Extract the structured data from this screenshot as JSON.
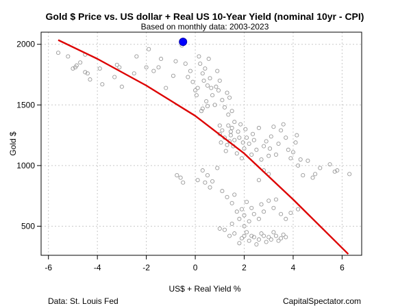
{
  "chart_data": {
    "type": "scatter",
    "title": "Gold $ Price vs. US dollar + Real US 10-Year Yield (nominal 10yr - CPI)",
    "subtitle": "Based on monthly data: 2003-2023",
    "xlabel": "US$ + Real Yield %",
    "ylabel": "Gold $",
    "xlim": [
      -6.3,
      6.8
    ],
    "ylim": [
      260,
      2100
    ],
    "x_ticks": [
      "-6",
      "-4",
      "-2",
      "0",
      "2",
      "4",
      "6"
    ],
    "x_tick_values": [
      -6,
      -4,
      -2,
      0,
      2,
      4,
      6
    ],
    "y_ticks": [
      "500",
      "1000",
      "1500",
      "2000"
    ],
    "y_tick_values": [
      500,
      1000,
      1500,
      2000
    ],
    "grid": true,
    "colors": {
      "points": "#999999",
      "fit_line": "#dd0000",
      "highlight": "#0000ff"
    },
    "points": [
      [
        -5.6,
        1930
      ],
      [
        -5.2,
        1900
      ],
      [
        -5.0,
        1800
      ],
      [
        -4.9,
        1810
      ],
      [
        -4.85,
        1825
      ],
      [
        -4.7,
        1850
      ],
      [
        -4.5,
        1770
      ],
      [
        -4.4,
        1760
      ],
      [
        -4.3,
        1710
      ],
      [
        -4.5,
        1915
      ],
      [
        -3.9,
        1800
      ],
      [
        -3.8,
        1670
      ],
      [
        -3.3,
        1730
      ],
      [
        -3.2,
        1830
      ],
      [
        -3.1,
        1810
      ],
      [
        -3.0,
        1650
      ],
      [
        -2.5,
        1760
      ],
      [
        -2.4,
        1900
      ],
      [
        -2.0,
        1810
      ],
      [
        -1.9,
        1960
      ],
      [
        -1.7,
        1780
      ],
      [
        -1.5,
        1810
      ],
      [
        -1.4,
        1880
      ],
      [
        -1.2,
        1640
      ],
      [
        -0.9,
        1740
      ],
      [
        -0.8,
        1860
      ],
      [
        -0.55,
        1990
      ],
      [
        -0.4,
        1840
      ],
      [
        -0.3,
        1730
      ],
      [
        -0.2,
        1780
      ],
      [
        -0.1,
        1690
      ],
      [
        0.0,
        1620
      ],
      [
        0.05,
        1580
      ],
      [
        0.1,
        1640
      ],
      [
        0.15,
        1900
      ],
      [
        0.2,
        1840
      ],
      [
        0.3,
        1760
      ],
      [
        0.35,
        1700
      ],
      [
        0.4,
        1800
      ],
      [
        0.45,
        1530
      ],
      [
        0.5,
        1660
      ],
      [
        0.55,
        1880
      ],
      [
        0.6,
        1720
      ],
      [
        0.65,
        1640
      ],
      [
        0.7,
        1580
      ],
      [
        0.8,
        1500
      ],
      [
        0.85,
        1650
      ],
      [
        0.9,
        1780
      ],
      [
        0.95,
        1620
      ],
      [
        1.0,
        1700
      ],
      [
        1.1,
        1540
      ],
      [
        1.2,
        1480
      ],
      [
        1.3,
        1600
      ],
      [
        1.35,
        1420
      ],
      [
        1.4,
        1560
      ],
      [
        1.5,
        1450
      ],
      [
        0.25,
        1450
      ],
      [
        0.3,
        1470
      ],
      [
        0.5,
        1490
      ],
      [
        1.0,
        1330
      ],
      [
        1.0,
        1260
      ],
      [
        1.05,
        1190
      ],
      [
        1.1,
        1290
      ],
      [
        1.2,
        1230
      ],
      [
        1.25,
        1120
      ],
      [
        1.3,
        1170
      ],
      [
        1.4,
        1200
      ],
      [
        1.45,
        1250
      ],
      [
        1.5,
        1310
      ],
      [
        1.55,
        1160
      ],
      [
        1.6,
        1210
      ],
      [
        1.7,
        1100
      ],
      [
        1.75,
        1280
      ],
      [
        1.8,
        1230
      ],
      [
        1.85,
        1340
      ],
      [
        1.9,
        1060
      ],
      [
        1.95,
        1190
      ],
      [
        2.0,
        1140
      ],
      [
        2.05,
        1300
      ],
      [
        2.1,
        1230
      ],
      [
        2.2,
        1180
      ],
      [
        2.3,
        1090
      ],
      [
        2.35,
        1260
      ],
      [
        2.4,
        1210
      ],
      [
        2.5,
        1130
      ],
      [
        2.6,
        1310
      ],
      [
        2.7,
        1050
      ],
      [
        2.8,
        1160
      ],
      [
        2.9,
        1200
      ],
      [
        3.0,
        1080
      ],
      [
        3.05,
        1140
      ],
      [
        3.1,
        1240
      ],
      [
        3.2,
        1320
      ],
      [
        3.3,
        1090
      ],
      [
        3.4,
        1180
      ],
      [
        3.5,
        1290
      ],
      [
        3.6,
        1340
      ],
      [
        3.7,
        1230
      ],
      [
        3.8,
        1130
      ],
      [
        3.9,
        1060
      ],
      [
        4.0,
        1110
      ],
      [
        4.1,
        1190
      ],
      [
        4.15,
        1250
      ],
      [
        4.2,
        1000
      ],
      [
        4.3,
        1050
      ],
      [
        1.35,
        1330
      ],
      [
        1.6,
        1360
      ],
      [
        1.45,
        1280
      ],
      [
        -0.75,
        920
      ],
      [
        -0.6,
        900
      ],
      [
        -0.5,
        860
      ],
      [
        0.1,
        880
      ],
      [
        0.3,
        960
      ],
      [
        0.5,
        920
      ],
      [
        0.7,
        870
      ],
      [
        0.9,
        980
      ],
      [
        1.1,
        790
      ],
      [
        1.3,
        740
      ],
      [
        1.5,
        690
      ],
      [
        1.6,
        760
      ],
      [
        1.7,
        620
      ],
      [
        1.8,
        560
      ],
      [
        1.9,
        640
      ],
      [
        2.0,
        590
      ],
      [
        2.1,
        700
      ],
      [
        2.2,
        540
      ],
      [
        2.3,
        650
      ],
      [
        2.4,
        600
      ],
      [
        2.6,
        560
      ],
      [
        2.7,
        680
      ],
      [
        2.8,
        620
      ],
      [
        3.0,
        710
      ],
      [
        3.2,
        650
      ],
      [
        3.3,
        720
      ],
      [
        3.5,
        600
      ],
      [
        3.7,
        560
      ],
      [
        3.9,
        610
      ],
      [
        4.2,
        640
      ],
      [
        0.6,
        820
      ],
      [
        0.4,
        860
      ],
      [
        2.6,
        880
      ],
      [
        2.8,
        960
      ],
      [
        3.0,
        930
      ],
      [
        4.6,
        1040
      ],
      [
        4.4,
        920
      ],
      [
        5.1,
        980
      ],
      [
        5.5,
        1010
      ],
      [
        5.8,
        960
      ],
      [
        5.7,
        950
      ],
      [
        6.3,
        930
      ],
      [
        4.8,
        900
      ],
      [
        4.9,
        930
      ],
      [
        1.2,
        470
      ],
      [
        1.6,
        440
      ],
      [
        2.0,
        420
      ],
      [
        2.2,
        380
      ],
      [
        2.4,
        410
      ],
      [
        2.5,
        350
      ],
      [
        2.6,
        390
      ],
      [
        2.7,
        440
      ],
      [
        2.8,
        420
      ],
      [
        2.9,
        370
      ],
      [
        3.0,
        410
      ],
      [
        3.1,
        390
      ],
      [
        3.3,
        420
      ],
      [
        3.4,
        380
      ],
      [
        3.5,
        400
      ],
      [
        3.6,
        430
      ],
      [
        3.7,
        410
      ],
      [
        1.8,
        360
      ],
      [
        1.9,
        400
      ],
      [
        2.1,
        450
      ],
      [
        2.3,
        420
      ],
      [
        1.4,
        420
      ],
      [
        1.0,
        480
      ],
      [
        1.5,
        520
      ],
      [
        3.2,
        450
      ],
      [
        2.0,
        500
      ]
    ],
    "highlight_point": [
      -0.5,
      2020
    ],
    "fit_line": [
      [
        -5.6,
        2035
      ],
      [
        -4.0,
        1880
      ],
      [
        -2.0,
        1660
      ],
      [
        0.0,
        1410
      ],
      [
        2.0,
        1100
      ],
      [
        4.0,
        720
      ],
      [
        6.25,
        270
      ]
    ]
  },
  "footer": {
    "source": "Data: St. Louis Fed",
    "site": "CapitalSpectator.com"
  }
}
